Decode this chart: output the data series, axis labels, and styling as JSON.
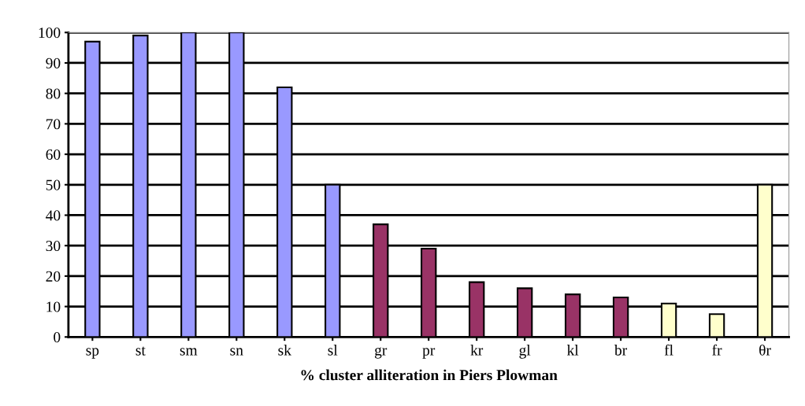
{
  "chart_data": {
    "type": "bar",
    "xlabel": "% cluster alliteration in Piers Plowman",
    "categories": [
      "sp",
      "st",
      "sm",
      "sn",
      "sk",
      "sl",
      "gr",
      "pr",
      "kr",
      "gl",
      "kl",
      "br",
      "fl",
      "fr",
      "θr"
    ],
    "values": [
      97,
      99,
      100,
      100,
      82,
      50,
      37,
      29,
      18,
      16,
      14,
      13,
      11,
      7.5,
      50
    ],
    "colors": [
      "#9999ff",
      "#9999ff",
      "#9999ff",
      "#9999ff",
      "#9999ff",
      "#9999ff",
      "#993366",
      "#993366",
      "#993366",
      "#993366",
      "#993366",
      "#993366",
      "#ffffcc",
      "#ffffcc",
      "#ffffcc"
    ],
    "ylim": [
      0,
      100
    ],
    "yticks": [
      0,
      10,
      20,
      30,
      40,
      50,
      60,
      70,
      80,
      90,
      100
    ],
    "grid": "y"
  }
}
